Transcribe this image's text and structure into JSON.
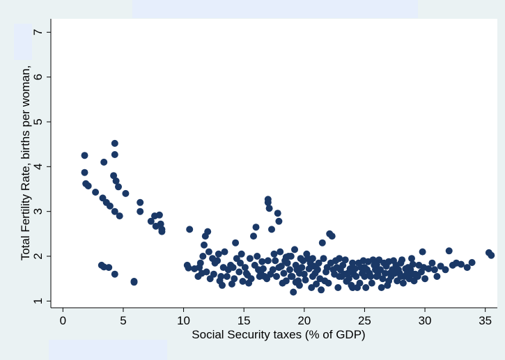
{
  "chart_data": {
    "type": "scatter",
    "title": "",
    "xlabel": "Social Security taxes (% of GDP)",
    "ylabel": "Total Fertility Rate, births per woman,",
    "xlim": [
      -1,
      36
    ],
    "ylim": [
      0.85,
      7.3
    ],
    "xticks": [
      "0",
      "5",
      "10",
      "15",
      "20",
      "25",
      "30",
      "35"
    ],
    "yticks": [
      "1",
      "2",
      "3",
      "4",
      "5",
      "6",
      "7"
    ],
    "grid": false,
    "legend": "none",
    "colors": {
      "marker": "#1a3866",
      "plot_bg": "#ffffff",
      "outer_bg": "#eaf2f3"
    },
    "points": [
      [
        1.8,
        4.25
      ],
      [
        1.8,
        3.87
      ],
      [
        1.9,
        3.62
      ],
      [
        2.1,
        3.57
      ],
      [
        2.7,
        3.43
      ],
      [
        3.3,
        3.3
      ],
      [
        3.6,
        3.2
      ],
      [
        3.9,
        3.12
      ],
      [
        4.3,
        3.0
      ],
      [
        4.7,
        2.9
      ],
      [
        3.4,
        4.1
      ],
      [
        4.3,
        4.52
      ],
      [
        4.3,
        4.27
      ],
      [
        4.2,
        3.8
      ],
      [
        4.4,
        3.68
      ],
      [
        4.6,
        3.55
      ],
      [
        5.2,
        3.4
      ],
      [
        6.4,
        3.2
      ],
      [
        6.4,
        3.0
      ],
      [
        3.2,
        1.8
      ],
      [
        3.4,
        1.76
      ],
      [
        3.8,
        1.75
      ],
      [
        4.3,
        1.6
      ],
      [
        5.9,
        1.44
      ],
      [
        5.9,
        1.42
      ],
      [
        7.3,
        2.78
      ],
      [
        7.6,
        2.9
      ],
      [
        7.7,
        2.67
      ],
      [
        8.0,
        2.92
      ],
      [
        8.1,
        2.72
      ],
      [
        8.2,
        2.6
      ],
      [
        8.2,
        2.55
      ],
      [
        10.3,
        1.8
      ],
      [
        10.4,
        1.74
      ],
      [
        10.5,
        2.6
      ],
      [
        10.9,
        1.72
      ],
      [
        11.2,
        1.55
      ],
      [
        11.4,
        1.85
      ],
      [
        11.5,
        1.62
      ],
      [
        11.6,
        2.0
      ],
      [
        11.7,
        2.25
      ],
      [
        11.8,
        2.45
      ],
      [
        12.0,
        2.55
      ],
      [
        12.2,
        1.5
      ],
      [
        12.5,
        1.6
      ],
      [
        12.8,
        1.9
      ],
      [
        13.0,
        1.45
      ],
      [
        13.3,
        1.75
      ],
      [
        13.6,
        1.55
      ],
      [
        14.0,
        1.38
      ],
      [
        14.3,
        2.3
      ],
      [
        14.6,
        1.65
      ],
      [
        14.9,
        1.44
      ],
      [
        15.3,
        1.58
      ],
      [
        15.5,
        1.95
      ],
      [
        15.8,
        2.45
      ],
      [
        16.0,
        2.65
      ],
      [
        16.2,
        1.7
      ],
      [
        16.5,
        1.88
      ],
      [
        16.7,
        1.55
      ],
      [
        17.0,
        3.27
      ],
      [
        17.0,
        3.2
      ],
      [
        17.1,
        3.07
      ],
      [
        17.3,
        2.6
      ],
      [
        17.6,
        1.9
      ],
      [
        17.8,
        2.96
      ],
      [
        17.9,
        2.78
      ],
      [
        18.1,
        1.78
      ],
      [
        18.3,
        1.62
      ],
      [
        18.5,
        1.45
      ],
      [
        18.7,
        2.0
      ],
      [
        18.9,
        1.55
      ],
      [
        19.1,
        1.2
      ],
      [
        19.3,
        1.8
      ],
      [
        19.6,
        1.62
      ],
      [
        19.9,
        1.9
      ],
      [
        20.1,
        1.47
      ],
      [
        20.4,
        1.72
      ],
      [
        20.7,
        1.55
      ],
      [
        21.0,
        1.38
      ],
      [
        21.2,
        1.85
      ],
      [
        21.5,
        2.3
      ],
      [
        21.8,
        1.65
      ],
      [
        22.1,
        2.5
      ],
      [
        22.3,
        2.45
      ],
      [
        22.6,
        1.9
      ],
      [
        22.9,
        1.55
      ],
      [
        23.2,
        1.8
      ],
      [
        23.5,
        1.44
      ],
      [
        23.8,
        1.72
      ],
      [
        24.1,
        1.6
      ],
      [
        24.4,
        1.3
      ],
      [
        24.7,
        1.75
      ],
      [
        25.0,
        1.55
      ],
      [
        25.3,
        1.88
      ],
      [
        25.6,
        1.4
      ],
      [
        25.9,
        1.7
      ],
      [
        26.2,
        1.92
      ],
      [
        26.5,
        1.5
      ],
      [
        26.8,
        1.78
      ],
      [
        27.1,
        1.62
      ],
      [
        27.4,
        1.9
      ],
      [
        27.7,
        1.45
      ],
      [
        28.0,
        1.85
      ],
      [
        28.3,
        1.55
      ],
      [
        28.6,
        1.75
      ],
      [
        28.9,
        1.95
      ],
      [
        29.2,
        1.6
      ],
      [
        29.5,
        1.8
      ],
      [
        29.8,
        2.1
      ],
      [
        30.0,
        1.5
      ],
      [
        30.3,
        1.72
      ],
      [
        30.6,
        1.85
      ],
      [
        31.0,
        1.55
      ],
      [
        31.3,
        1.78
      ],
      [
        31.7,
        1.7
      ],
      [
        32.0,
        2.12
      ],
      [
        32.3,
        1.8
      ],
      [
        32.6,
        1.85
      ],
      [
        33.0,
        1.82
      ],
      [
        33.5,
        1.75
      ],
      [
        33.9,
        1.86
      ],
      [
        35.3,
        2.08
      ],
      [
        35.5,
        2.02
      ],
      [
        12.4,
        1.95
      ],
      [
        12.9,
        2.05
      ],
      [
        13.4,
        2.1
      ],
      [
        13.9,
        1.8
      ],
      [
        14.4,
        1.95
      ],
      [
        14.8,
        2.05
      ],
      [
        15.1,
        1.75
      ],
      [
        15.6,
        1.5
      ],
      [
        16.1,
        2.0
      ],
      [
        16.4,
        1.62
      ],
      [
        16.9,
        1.5
      ],
      [
        17.4,
        1.7
      ],
      [
        17.7,
        1.55
      ],
      [
        18.0,
        2.1
      ],
      [
        18.4,
        1.9
      ],
      [
        18.8,
        1.7
      ],
      [
        19.2,
        2.15
      ],
      [
        19.5,
        1.45
      ],
      [
        19.8,
        1.75
      ],
      [
        20.3,
        1.95
      ],
      [
        20.6,
        1.3
      ],
      [
        20.9,
        1.62
      ],
      [
        21.3,
        1.5
      ],
      [
        21.6,
        1.95
      ],
      [
        22.0,
        1.4
      ],
      [
        22.4,
        1.7
      ],
      [
        22.8,
        1.3
      ],
      [
        23.1,
        1.55
      ],
      [
        23.4,
        1.92
      ],
      [
        23.7,
        1.5
      ],
      [
        24.0,
        1.85
      ],
      [
        24.3,
        1.55
      ],
      [
        24.6,
        1.4
      ],
      [
        24.9,
        1.9
      ],
      [
        25.2,
        1.7
      ],
      [
        25.5,
        1.55
      ],
      [
        25.8,
        1.8
      ],
      [
        26.1,
        1.6
      ],
      [
        26.4,
        1.3
      ],
      [
        26.7,
        1.62
      ],
      [
        27.0,
        1.45
      ],
      [
        27.3,
        1.7
      ],
      [
        27.6,
        1.8
      ],
      [
        27.9,
        1.62
      ],
      [
        28.2,
        1.4
      ],
      [
        28.5,
        1.6
      ],
      [
        28.8,
        1.7
      ],
      [
        29.1,
        1.45
      ],
      [
        29.4,
        1.55
      ],
      [
        29.7,
        1.65
      ],
      [
        11.3,
        1.75
      ],
      [
        11.9,
        1.65
      ],
      [
        12.6,
        1.85
      ],
      [
        13.1,
        1.55
      ],
      [
        13.7,
        1.7
      ],
      [
        14.2,
        1.5
      ],
      [
        14.7,
        1.85
      ],
      [
        15.2,
        1.62
      ],
      [
        15.9,
        1.8
      ],
      [
        16.6,
        1.72
      ],
      [
        18.6,
        1.85
      ],
      [
        19.0,
        1.55
      ],
      [
        19.4,
        1.7
      ],
      [
        19.7,
        1.95
      ],
      [
        20.0,
        1.6
      ],
      [
        20.5,
        1.85
      ],
      [
        21.1,
        1.7
      ],
      [
        21.9,
        1.75
      ],
      [
        22.5,
        1.6
      ],
      [
        23.0,
        1.7
      ],
      [
        23.6,
        1.62
      ],
      [
        24.2,
        1.72
      ],
      [
        24.8,
        1.62
      ],
      [
        25.4,
        1.62
      ],
      [
        26.0,
        1.55
      ],
      [
        26.6,
        1.85
      ],
      [
        27.2,
        1.55
      ],
      [
        27.8,
        1.7
      ],
      [
        28.4,
        1.72
      ],
      [
        29.0,
        1.82
      ],
      [
        17.2,
        1.6
      ],
      [
        17.5,
        2.05
      ],
      [
        18.2,
        1.4
      ],
      [
        18.9,
        2.0
      ],
      [
        19.6,
        1.35
      ],
      [
        20.2,
        2.05
      ],
      [
        20.8,
        1.78
      ],
      [
        21.4,
        1.25
      ],
      [
        22.2,
        1.85
      ],
      [
        22.7,
        1.75
      ],
      [
        23.3,
        1.6
      ],
      [
        23.9,
        1.35
      ],
      [
        24.5,
        1.85
      ],
      [
        25.1,
        1.3
      ],
      [
        25.7,
        1.92
      ],
      [
        26.3,
        1.7
      ],
      [
        26.9,
        1.35
      ],
      [
        27.5,
        1.62
      ],
      [
        28.1,
        1.92
      ],
      [
        28.7,
        1.5
      ],
      [
        13.2,
        1.35
      ],
      [
        14.1,
        1.75
      ],
      [
        15.4,
        1.4
      ],
      [
        16.3,
        1.55
      ],
      [
        17.9,
        1.75
      ],
      [
        18.5,
        1.98
      ],
      [
        19.3,
        1.42
      ],
      [
        20.7,
        1.95
      ],
      [
        21.7,
        1.45
      ],
      [
        22.9,
        1.95
      ],
      [
        24.0,
        1.3
      ],
      [
        25.0,
        1.75
      ],
      [
        26.0,
        1.82
      ],
      [
        27.0,
        1.88
      ],
      [
        28.0,
        1.55
      ],
      [
        29.0,
        1.6
      ],
      [
        29.9,
        1.75
      ],
      [
        30.8,
        1.7
      ],
      [
        12.1,
        2.1
      ],
      [
        17.0,
        1.9
      ]
    ]
  }
}
